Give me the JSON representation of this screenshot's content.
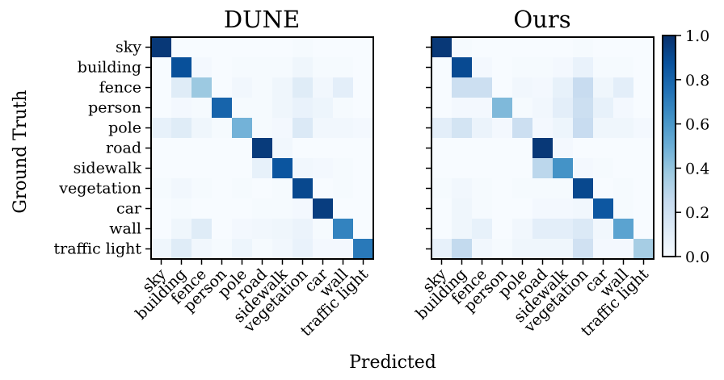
{
  "chart_data": {
    "type": "heatmap",
    "xlabel": "Predicted",
    "ylabel": "Ground Truth",
    "categories": [
      "sky",
      "building",
      "fence",
      "person",
      "pole",
      "road",
      "sidewalk",
      "vegetation",
      "car",
      "wall",
      "traffic light"
    ],
    "colorbar": {
      "range": [
        0.0,
        1.0
      ],
      "ticks": [
        "0.0",
        "0.2",
        "0.4",
        "0.6",
        "0.8",
        "1.0"
      ],
      "colormap": "Blues",
      "low_color": "#f7fbff",
      "high_color": "#08306b"
    },
    "panels": [
      {
        "title": "DUNE",
        "matrix": [
          [
            0.97,
            0.0,
            0.0,
            0.0,
            0.0,
            0.0,
            0.0,
            0.01,
            0.0,
            0.0,
            0.0
          ],
          [
            0.0,
            0.88,
            0.02,
            0.0,
            0.01,
            0.01,
            0.01,
            0.04,
            0.01,
            0.01,
            0.0
          ],
          [
            0.0,
            0.12,
            0.38,
            0.0,
            0.03,
            0.01,
            0.04,
            0.12,
            0.03,
            0.1,
            0.0
          ],
          [
            0.0,
            0.02,
            0.01,
            0.8,
            0.01,
            0.01,
            0.04,
            0.07,
            0.05,
            0.01,
            0.0
          ],
          [
            0.08,
            0.12,
            0.04,
            0.01,
            0.48,
            0.01,
            0.02,
            0.14,
            0.03,
            0.03,
            0.02
          ],
          [
            0.0,
            0.0,
            0.0,
            0.0,
            0.0,
            0.96,
            0.03,
            0.0,
            0.0,
            0.0,
            0.0
          ],
          [
            0.0,
            0.0,
            0.0,
            0.0,
            0.0,
            0.08,
            0.86,
            0.03,
            0.02,
            0.01,
            0.0
          ],
          [
            0.01,
            0.03,
            0.01,
            0.0,
            0.01,
            0.0,
            0.01,
            0.91,
            0.0,
            0.01,
            0.0
          ],
          [
            0.0,
            0.01,
            0.0,
            0.0,
            0.0,
            0.01,
            0.01,
            0.02,
            0.95,
            0.0,
            0.0
          ],
          [
            0.0,
            0.04,
            0.12,
            0.0,
            0.02,
            0.03,
            0.04,
            0.06,
            0.01,
            0.68,
            0.0
          ],
          [
            0.04,
            0.12,
            0.03,
            0.01,
            0.05,
            0.01,
            0.03,
            0.07,
            0.02,
            0.02,
            0.72
          ]
        ]
      },
      {
        "title": "Ours",
        "matrix": [
          [
            0.97,
            0.01,
            0.0,
            0.0,
            0.0,
            0.0,
            0.0,
            0.01,
            0.0,
            0.0,
            0.0
          ],
          [
            0.0,
            0.9,
            0.02,
            0.0,
            0.01,
            0.01,
            0.02,
            0.07,
            0.01,
            0.01,
            0.0
          ],
          [
            0.0,
            0.22,
            0.22,
            0.0,
            0.03,
            0.02,
            0.08,
            0.24,
            0.04,
            0.1,
            0.0
          ],
          [
            0.0,
            0.02,
            0.02,
            0.45,
            0.01,
            0.03,
            0.1,
            0.22,
            0.08,
            0.02,
            0.0
          ],
          [
            0.1,
            0.18,
            0.06,
            0.02,
            0.22,
            0.02,
            0.05,
            0.24,
            0.04,
            0.04,
            0.02
          ],
          [
            0.0,
            0.0,
            0.0,
            0.0,
            0.0,
            0.97,
            0.02,
            0.0,
            0.0,
            0.0,
            0.0
          ],
          [
            0.0,
            0.0,
            0.0,
            0.0,
            0.0,
            0.28,
            0.62,
            0.02,
            0.01,
            0.0,
            0.0
          ],
          [
            0.01,
            0.03,
            0.01,
            0.0,
            0.01,
            0.01,
            0.01,
            0.91,
            0.0,
            0.01,
            0.0
          ],
          [
            0.0,
            0.04,
            0.01,
            0.0,
            0.0,
            0.02,
            0.02,
            0.03,
            0.85,
            0.01,
            0.0
          ],
          [
            0.0,
            0.04,
            0.08,
            0.0,
            0.03,
            0.1,
            0.1,
            0.14,
            0.03,
            0.55,
            0.0
          ],
          [
            0.08,
            0.26,
            0.03,
            0.01,
            0.04,
            0.04,
            0.04,
            0.2,
            0.02,
            0.02,
            0.35
          ]
        ]
      }
    ]
  }
}
